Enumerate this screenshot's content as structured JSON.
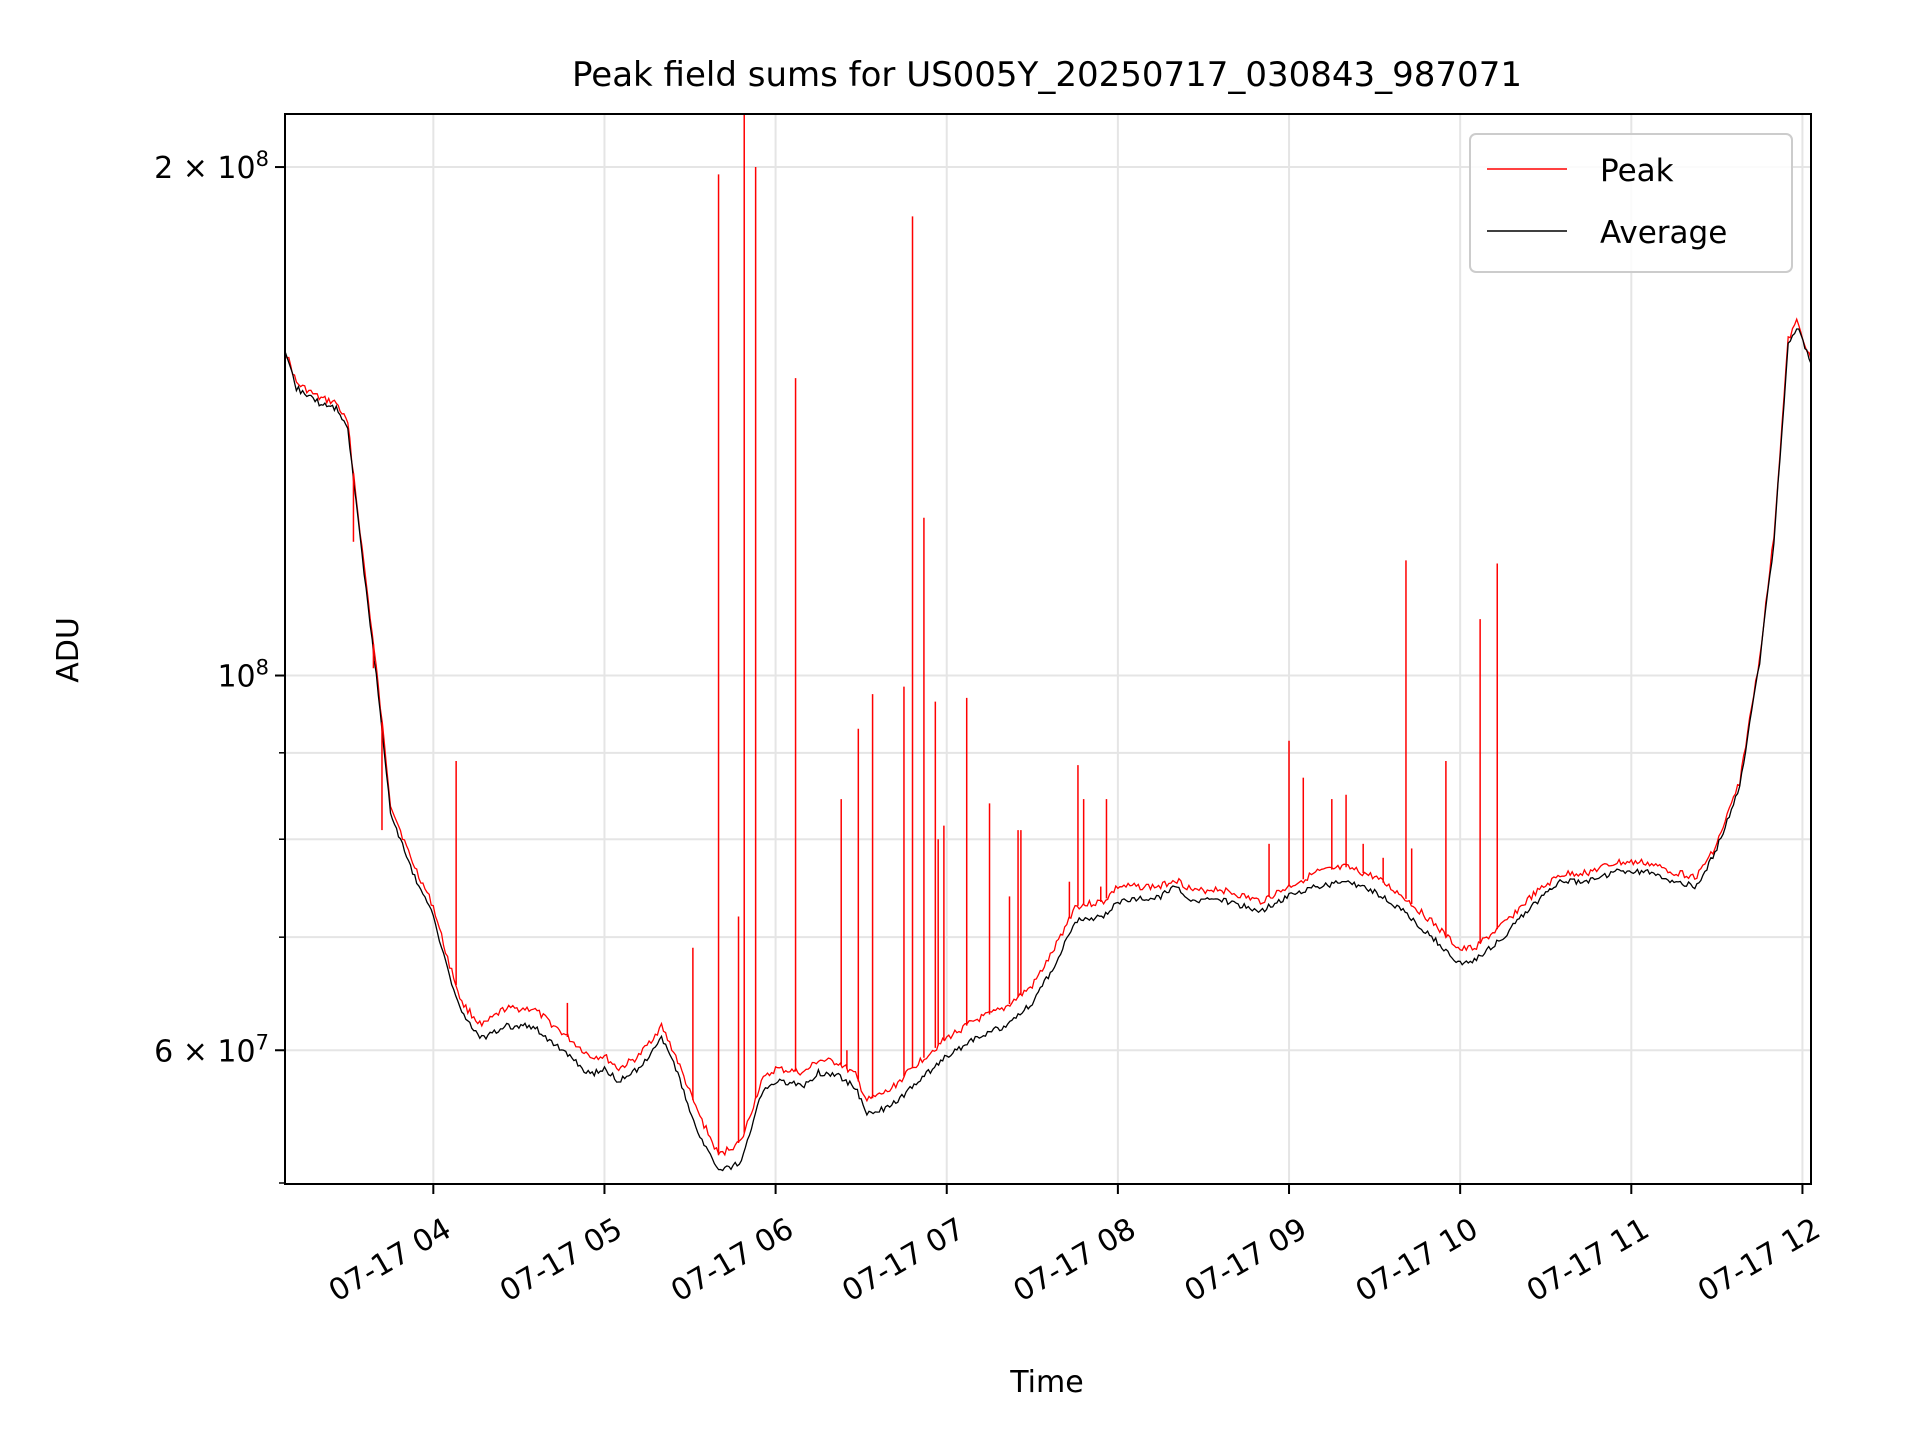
{
  "chart_data": {
    "type": "line",
    "title": "Peak field sums for US005Y_20250717_030843_987071",
    "xlabel": "Time",
    "ylabel": "ADU",
    "y_scale": "log",
    "ylim": [
      50000000,
      215000000
    ],
    "xlim": [
      "2025-07-17 03:08",
      "2025-07-17 12:03"
    ],
    "grid": true,
    "legend_position": "top-right",
    "x_ticks": [
      {
        "t": "2025-07-17 04:00",
        "label": "07-17 04"
      },
      {
        "t": "2025-07-17 05:00",
        "label": "07-17 05"
      },
      {
        "t": "2025-07-17 06:00",
        "label": "07-17 06"
      },
      {
        "t": "2025-07-17 07:00",
        "label": "07-17 07"
      },
      {
        "t": "2025-07-17 08:00",
        "label": "07-17 08"
      },
      {
        "t": "2025-07-17 09:00",
        "label": "07-17 09"
      },
      {
        "t": "2025-07-17 10:00",
        "label": "07-17 10"
      },
      {
        "t": "2025-07-17 11:00",
        "label": "07-17 11"
      },
      {
        "t": "2025-07-17 12:00",
        "label": "07-17 12"
      }
    ],
    "y_major_ticks": [
      {
        "value": 60000000,
        "base": "6 × 10",
        "exp": "7"
      },
      {
        "value": 100000000,
        "base": "10",
        "exp": "8"
      },
      {
        "value": 200000000,
        "base": "2 × 10",
        "exp": "8"
      }
    ],
    "y_minor_ticks": [
      70000000,
      80000000,
      90000000
    ],
    "series": [
      {
        "name": "Average",
        "color": "#000000",
        "points": [
          [
            "2025-07-17 03:08",
            155000000
          ],
          [
            "2025-07-17 03:12",
            148000000
          ],
          [
            "2025-07-17 03:20",
            145000000
          ],
          [
            "2025-07-17 03:26",
            144000000
          ],
          [
            "2025-07-17 03:30",
            140000000
          ],
          [
            "2025-07-17 03:35",
            118000000
          ],
          [
            "2025-07-17 03:40",
            100000000
          ],
          [
            "2025-07-17 03:45",
            83000000
          ],
          [
            "2025-07-17 03:52",
            77000000
          ],
          [
            "2025-07-17 04:00",
            72000000
          ],
          [
            "2025-07-17 04:05",
            67000000
          ],
          [
            "2025-07-17 04:10",
            63000000
          ],
          [
            "2025-07-17 04:17",
            61000000
          ],
          [
            "2025-07-17 04:25",
            62000000
          ],
          [
            "2025-07-17 04:35",
            62000000
          ],
          [
            "2025-07-17 04:45",
            60000000
          ],
          [
            "2025-07-17 04:55",
            58000000
          ],
          [
            "2025-07-17 05:00",
            58500000
          ],
          [
            "2025-07-17 05:05",
            57500000
          ],
          [
            "2025-07-17 05:12",
            58500000
          ],
          [
            "2025-07-17 05:20",
            61000000
          ],
          [
            "2025-07-17 05:25",
            58500000
          ],
          [
            "2025-07-17 05:32",
            54000000
          ],
          [
            "2025-07-17 05:40",
            50800000
          ],
          [
            "2025-07-17 05:48",
            51500000
          ],
          [
            "2025-07-17 05:55",
            56500000
          ],
          [
            "2025-07-17 06:00",
            57500000
          ],
          [
            "2025-07-17 06:10",
            57200000
          ],
          [
            "2025-07-17 06:15",
            58200000
          ],
          [
            "2025-07-17 06:22",
            58000000
          ],
          [
            "2025-07-17 06:28",
            57000000
          ],
          [
            "2025-07-17 06:32",
            55000000
          ],
          [
            "2025-07-17 06:40",
            55500000
          ],
          [
            "2025-07-17 06:50",
            57500000
          ],
          [
            "2025-07-17 07:00",
            59500000
          ],
          [
            "2025-07-17 07:10",
            61000000
          ],
          [
            "2025-07-17 07:20",
            62000000
          ],
          [
            "2025-07-17 07:30",
            64000000
          ],
          [
            "2025-07-17 07:37",
            67000000
          ],
          [
            "2025-07-17 07:45",
            71500000
          ],
          [
            "2025-07-17 07:55",
            72000000
          ],
          [
            "2025-07-17 08:00",
            73500000
          ],
          [
            "2025-07-17 08:15",
            74000000
          ],
          [
            "2025-07-17 08:20",
            75000000
          ],
          [
            "2025-07-17 08:27",
            73500000
          ],
          [
            "2025-07-17 08:35",
            73800000
          ],
          [
            "2025-07-17 08:50",
            72500000
          ],
          [
            "2025-07-17 09:00",
            74000000
          ],
          [
            "2025-07-17 09:10",
            75000000
          ],
          [
            "2025-07-17 09:20",
            75500000
          ],
          [
            "2025-07-17 09:30",
            74500000
          ],
          [
            "2025-07-17 09:40",
            72500000
          ],
          [
            "2025-07-17 09:50",
            70000000
          ],
          [
            "2025-07-17 10:00",
            67500000
          ],
          [
            "2025-07-17 10:05",
            67800000
          ],
          [
            "2025-07-17 10:15",
            70000000
          ],
          [
            "2025-07-17 10:25",
            73000000
          ],
          [
            "2025-07-17 10:35",
            75500000
          ],
          [
            "2025-07-17 10:45",
            75500000
          ],
          [
            "2025-07-17 10:55",
            76500000
          ],
          [
            "2025-07-17 11:05",
            76500000
          ],
          [
            "2025-07-17 11:15",
            75500000
          ],
          [
            "2025-07-17 11:23",
            75000000
          ],
          [
            "2025-07-17 11:30",
            79000000
          ],
          [
            "2025-07-17 11:38",
            86000000
          ],
          [
            "2025-07-17 11:45",
            102000000
          ],
          [
            "2025-07-17 11:50",
            120000000
          ],
          [
            "2025-07-17 11:55",
            157000000
          ],
          [
            "2025-07-17 11:58",
            161000000
          ],
          [
            "2025-07-17 12:03",
            153000000
          ]
        ]
      },
      {
        "name": "Peak",
        "color": "#ff0000",
        "points": [
          [
            "2025-07-17 03:08",
            156000000
          ],
          [
            "2025-07-17 03:12",
            149000000
          ],
          [
            "2025-07-17 03:20",
            146000000
          ],
          [
            "2025-07-17 03:26",
            145000000
          ],
          [
            "2025-07-17 03:30",
            141000000
          ],
          [
            "2025-07-17 03:35",
            119000000
          ],
          [
            "2025-07-17 03:40",
            101000000
          ],
          [
            "2025-07-17 03:45",
            84000000
          ],
          [
            "2025-07-17 03:52",
            78000000
          ],
          [
            "2025-07-17 04:00",
            73000000
          ],
          [
            "2025-07-17 04:05",
            68000000
          ],
          [
            "2025-07-17 04:10",
            64000000
          ],
          [
            "2025-07-17 04:17",
            62000000
          ],
          [
            "2025-07-17 04:25",
            63500000
          ],
          [
            "2025-07-17 04:35",
            63500000
          ],
          [
            "2025-07-17 04:45",
            61500000
          ],
          [
            "2025-07-17 04:55",
            59500000
          ],
          [
            "2025-07-17 05:00",
            59500000
          ],
          [
            "2025-07-17 05:05",
            58500000
          ],
          [
            "2025-07-17 05:12",
            59500000
          ],
          [
            "2025-07-17 05:20",
            62000000
          ],
          [
            "2025-07-17 05:25",
            59500000
          ],
          [
            "2025-07-17 05:32",
            55500000
          ],
          [
            "2025-07-17 05:40",
            52000000
          ],
          [
            "2025-07-17 05:48",
            53000000
          ],
          [
            "2025-07-17 05:55",
            57500000
          ],
          [
            "2025-07-17 06:00",
            58500000
          ],
          [
            "2025-07-17 06:10",
            58200000
          ],
          [
            "2025-07-17 06:15",
            59200000
          ],
          [
            "2025-07-17 06:22",
            59000000
          ],
          [
            "2025-07-17 06:28",
            58000000
          ],
          [
            "2025-07-17 06:32",
            56000000
          ],
          [
            "2025-07-17 06:40",
            56800000
          ],
          [
            "2025-07-17 06:50",
            59000000
          ],
          [
            "2025-07-17 07:00",
            61000000
          ],
          [
            "2025-07-17 07:10",
            62500000
          ],
          [
            "2025-07-17 07:20",
            63500000
          ],
          [
            "2025-07-17 07:30",
            65500000
          ],
          [
            "2025-07-17 07:37",
            68500000
          ],
          [
            "2025-07-17 07:45",
            73000000
          ],
          [
            "2025-07-17 07:55",
            73500000
          ],
          [
            "2025-07-17 08:00",
            75000000
          ],
          [
            "2025-07-17 08:15",
            75000000
          ],
          [
            "2025-07-17 08:20",
            75800000
          ],
          [
            "2025-07-17 08:27",
            74500000
          ],
          [
            "2025-07-17 08:35",
            74800000
          ],
          [
            "2025-07-17 08:50",
            73500000
          ],
          [
            "2025-07-17 09:00",
            75000000
          ],
          [
            "2025-07-17 09:10",
            76500000
          ],
          [
            "2025-07-17 09:20",
            77000000
          ],
          [
            "2025-07-17 09:30",
            76000000
          ],
          [
            "2025-07-17 09:40",
            74000000
          ],
          [
            "2025-07-17 09:50",
            71500000
          ],
          [
            "2025-07-17 10:00",
            68800000
          ],
          [
            "2025-07-17 10:05",
            69000000
          ],
          [
            "2025-07-17 10:15",
            71200000
          ],
          [
            "2025-07-17 10:25",
            74000000
          ],
          [
            "2025-07-17 10:35",
            76200000
          ],
          [
            "2025-07-17 10:45",
            76500000
          ],
          [
            "2025-07-17 10:55",
            77500000
          ],
          [
            "2025-07-17 11:05",
            77500000
          ],
          [
            "2025-07-17 11:15",
            76500000
          ],
          [
            "2025-07-17 11:23",
            76000000
          ],
          [
            "2025-07-17 11:30",
            79500000
          ],
          [
            "2025-07-17 11:38",
            86500000
          ],
          [
            "2025-07-17 11:45",
            102500000
          ],
          [
            "2025-07-17 11:50",
            121000000
          ],
          [
            "2025-07-17 11:55",
            158000000
          ],
          [
            "2025-07-17 11:58",
            162000000
          ],
          [
            "2025-07-17 12:03",
            154000000
          ]
        ],
        "spikes": [
          [
            "2025-07-17 03:32",
            120000000
          ],
          [
            "2025-07-17 03:39",
            101000000
          ],
          [
            "2025-07-17 03:42",
            81000000
          ],
          [
            "2025-07-17 04:08",
            89000000
          ],
          [
            "2025-07-17 04:47",
            64000000
          ],
          [
            "2025-07-17 05:31",
            69000000
          ],
          [
            "2025-07-17 05:40",
            198000000
          ],
          [
            "2025-07-17 05:47",
            72000000
          ],
          [
            "2025-07-17 05:49",
            215000000
          ],
          [
            "2025-07-17 05:53",
            200000000
          ],
          [
            "2025-07-17 06:07",
            150000000
          ],
          [
            "2025-07-17 06:23",
            84500000
          ],
          [
            "2025-07-17 06:25",
            60000000
          ],
          [
            "2025-07-17 06:29",
            93000000
          ],
          [
            "2025-07-17 06:34",
            97500000
          ],
          [
            "2025-07-17 06:45",
            98500000
          ],
          [
            "2025-07-17 06:48",
            187000000
          ],
          [
            "2025-07-17 06:52",
            124000000
          ],
          [
            "2025-07-17 06:56",
            96500000
          ],
          [
            "2025-07-17 06:57",
            80000000
          ],
          [
            "2025-07-17 06:59",
            81500000
          ],
          [
            "2025-07-17 07:07",
            97000000
          ],
          [
            "2025-07-17 07:15",
            84000000
          ],
          [
            "2025-07-17 07:22",
            74000000
          ],
          [
            "2025-07-17 07:25",
            81000000
          ],
          [
            "2025-07-17 07:26",
            81000000
          ],
          [
            "2025-07-17 07:43",
            75500000
          ],
          [
            "2025-07-17 07:46",
            88500000
          ],
          [
            "2025-07-17 07:48",
            84500000
          ],
          [
            "2025-07-17 07:54",
            75000000
          ],
          [
            "2025-07-17 07:56",
            84500000
          ],
          [
            "2025-07-17 08:53",
            79500000
          ],
          [
            "2025-07-17 09:00",
            91500000
          ],
          [
            "2025-07-17 09:05",
            87000000
          ],
          [
            "2025-07-17 09:15",
            84500000
          ],
          [
            "2025-07-17 09:20",
            85000000
          ],
          [
            "2025-07-17 09:26",
            79500000
          ],
          [
            "2025-07-17 09:33",
            78000000
          ],
          [
            "2025-07-17 09:41",
            117000000
          ],
          [
            "2025-07-17 09:43",
            79000000
          ],
          [
            "2025-07-17 09:55",
            89000000
          ],
          [
            "2025-07-17 10:07",
            108000000
          ],
          [
            "2025-07-17 10:13",
            116500000
          ]
        ]
      }
    ]
  }
}
